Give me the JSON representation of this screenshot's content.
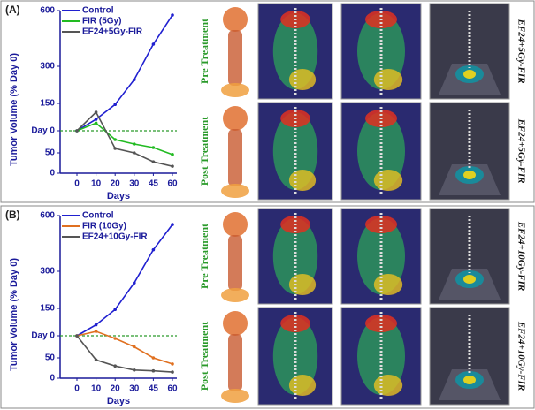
{
  "panels": [
    {
      "label": "(A)",
      "rows": [
        "Pre Treatment",
        "Post Treatment"
      ],
      "treatment_labels": [
        "EF24+5Gy-FIR",
        "EF24+5Gy-FIR"
      ]
    },
    {
      "label": "(B)",
      "rows": [
        "Pre Treatment",
        "Post Treatment"
      ],
      "treatment_labels": [
        "EF24+10Gy-FIR",
        "EF24+10Gy-FIR"
      ]
    }
  ],
  "chart_data": [
    {
      "type": "line",
      "xlabel": "Days",
      "ylabel": "Tumor Volume (% Day 0)",
      "categories": [
        "0",
        "10",
        "20",
        "30",
        "45",
        "60"
      ],
      "ylim": [
        0,
        600
      ],
      "yticks": [
        0,
        50,
        {
          "value": 100,
          "label": "Day 0"
        },
        150,
        300,
        600
      ],
      "yscale": "segmented",
      "reference_line": 100,
      "reference_color": "#2a9a2a",
      "legend": "upper left",
      "series": [
        {
          "name": "Control",
          "color": "#2020d0",
          "values": [
            100,
            121,
            148,
            246,
            419,
            576
          ]
        },
        {
          "name": "FIR (5Gy)",
          "color": "#22bb22",
          "values": [
            100,
            114,
            80,
            70,
            62,
            46
          ]
        },
        {
          "name": "EF24+5Gy-FIR",
          "color": "#555555",
          "values": [
            100,
            134,
            60,
            50,
            28,
            17
          ]
        }
      ]
    },
    {
      "type": "line",
      "xlabel": "Days",
      "ylabel": "Tumor Volume (% Day 0)",
      "categories": [
        "0",
        "10",
        "20",
        "30",
        "45",
        "60"
      ],
      "ylim": [
        0,
        600
      ],
      "yticks": [
        0,
        50,
        {
          "value": 100,
          "label": "Day 0"
        },
        150,
        300,
        600
      ],
      "yscale": "segmented",
      "reference_line": 100,
      "reference_color": "#2a9a2a",
      "legend": "upper left",
      "series": [
        {
          "name": "Control",
          "color": "#2020d0",
          "values": [
            100,
            120,
            148,
            253,
            416,
            552
          ]
        },
        {
          "name": "FIR (10Gy)",
          "color": "#e07020",
          "values": [
            100,
            108,
            94,
            75,
            50,
            35
          ]
        },
        {
          "name": "EF24+10Gy-FIR",
          "color": "#555555",
          "values": [
            100,
            45,
            30,
            20,
            18,
            15
          ]
        }
      ]
    }
  ]
}
